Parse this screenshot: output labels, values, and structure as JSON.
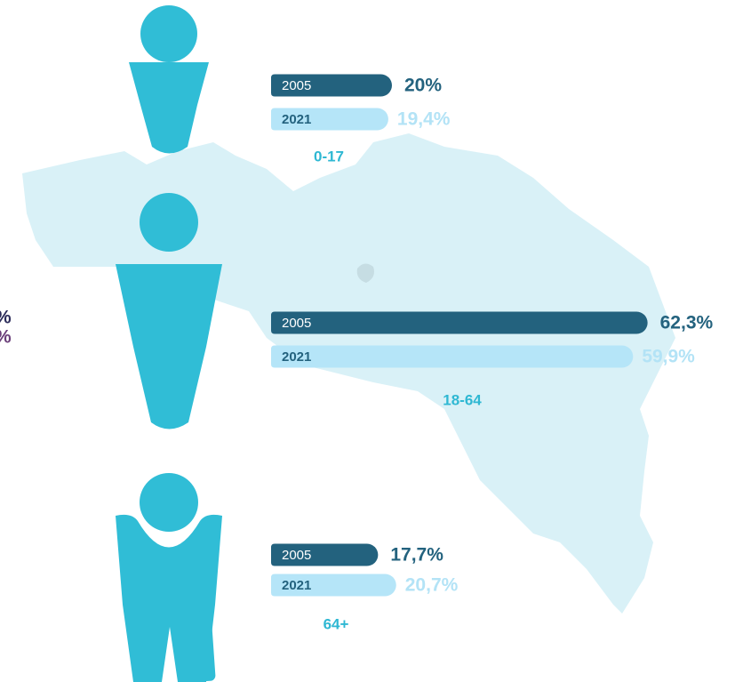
{
  "chart_data": {
    "type": "bar",
    "orientation": "horizontal",
    "categories": [
      "0-17",
      "18-64",
      "64+"
    ],
    "series": [
      {
        "name": "2005",
        "color": "#23627e",
        "values": [
          20,
          62.3,
          17.7
        ],
        "value_labels": [
          "20%",
          "62,3%",
          "17,7%"
        ]
      },
      {
        "name": "2021",
        "color": "#b5e5f8",
        "values": [
          19.4,
          59.9,
          20.7
        ],
        "value_labels": [
          "19,4%",
          "59,9%",
          "20,7%"
        ]
      }
    ],
    "annotations": [
      "%",
      "%"
    ]
  }
}
